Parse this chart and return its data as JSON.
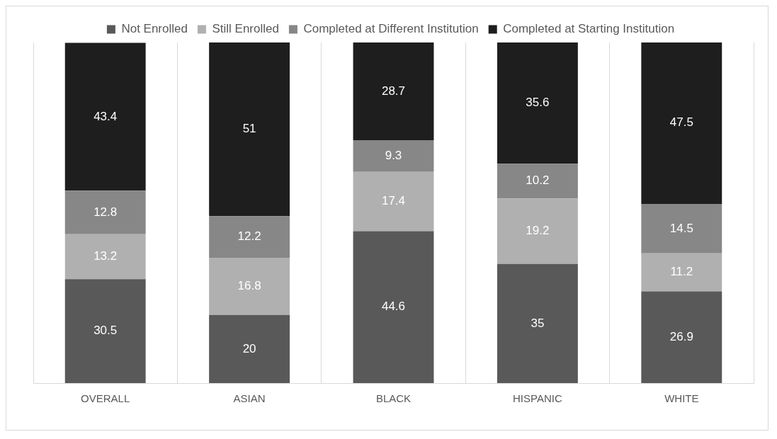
{
  "chart_data": {
    "type": "bar",
    "stacked": true,
    "categories": [
      "OVERALL",
      "ASIAN",
      "BLACK",
      "HISPANIC",
      "WHITE"
    ],
    "series": [
      {
        "name": "Not Enrolled",
        "color": "#595959",
        "values": [
          30.5,
          20,
          44.6,
          35,
          26.9
        ]
      },
      {
        "name": "Still Enrolled",
        "color": "#b0b0b0",
        "values": [
          13.2,
          16.8,
          17.4,
          19.2,
          11.2
        ]
      },
      {
        "name": "Completed at Different Institution",
        "color": "#878787",
        "values": [
          12.8,
          12.2,
          9.3,
          10.2,
          14.5
        ]
      },
      {
        "name": "Completed at Starting Institution",
        "color": "#1e1e1e",
        "values": [
          43.4,
          51,
          28.7,
          35.6,
          47.5
        ]
      }
    ],
    "ylim": [
      0,
      100
    ],
    "tick_labels": "x",
    "grid": "x",
    "legend": "top",
    "data_labels": true
  }
}
